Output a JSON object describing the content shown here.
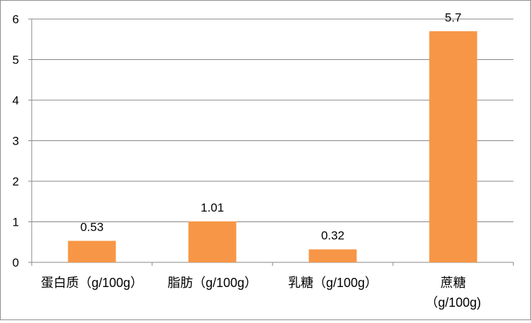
{
  "chart_data": {
    "type": "bar",
    "categories": [
      [
        "蛋白质（g/100g）"
      ],
      [
        "脂肪（g/100g）"
      ],
      [
        "乳糖（g/100g）"
      ],
      [
        "蔗糖",
        "（g/100g)"
      ]
    ],
    "values": [
      0.53,
      1.01,
      0.32,
      5.7
    ],
    "data_labels": [
      "0.53",
      "1.01",
      "0.32",
      "5.7"
    ],
    "ylim": [
      0,
      6
    ],
    "yticks": [
      0,
      1,
      2,
      3,
      4,
      5,
      6
    ],
    "grid": true,
    "legend": "none",
    "bar_color": "#F79646",
    "grid_color": "#878787"
  }
}
